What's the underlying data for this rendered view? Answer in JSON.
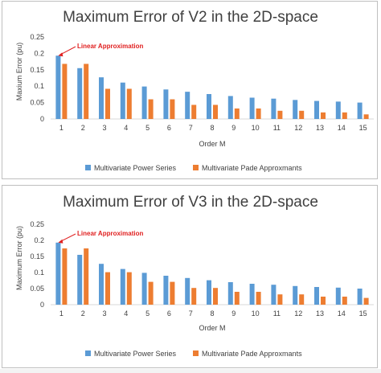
{
  "chart_data": [
    {
      "type": "bar",
      "title": "Maximum Error of V2 in the 2D-space",
      "xlabel": "Order M",
      "ylabel": "Maxium Error (pu)",
      "ylim": [
        0,
        0.25
      ],
      "yticks": [
        "0",
        "0.05",
        "0.1",
        "0.15",
        "0.2",
        "0.25"
      ],
      "categories": [
        "1",
        "2",
        "3",
        "4",
        "5",
        "6",
        "7",
        "8",
        "9",
        "10",
        "11",
        "12",
        "13",
        "14",
        "15"
      ],
      "series": [
        {
          "name": "Multivariate Power Series",
          "color": "#5b9bd5",
          "values": [
            0.193,
            0.155,
            0.127,
            0.111,
            0.099,
            0.09,
            0.083,
            0.076,
            0.07,
            0.065,
            0.062,
            0.058,
            0.055,
            0.053,
            0.05
          ]
        },
        {
          "name": "Multivariate Pade Approxmants",
          "color": "#ed7d31",
          "values": [
            0.168,
            0.168,
            0.092,
            0.092,
            0.06,
            0.06,
            0.043,
            0.043,
            0.032,
            0.032,
            0.025,
            0.025,
            0.02,
            0.02,
            0.014
          ]
        }
      ],
      "annotation": {
        "text": "Linear Approximation",
        "category": "1",
        "color": "#e02020"
      },
      "grid": false,
      "legend": "bottom"
    },
    {
      "type": "bar",
      "title": "Maximum Error of V3 in the 2D-space",
      "xlabel": "Order M",
      "ylabel": "Maximum Error (pu)",
      "ylim": [
        0,
        0.25
      ],
      "yticks": [
        "0",
        "0.05",
        "0.1",
        "0.15",
        "0.2",
        "0.25"
      ],
      "categories": [
        "1",
        "2",
        "3",
        "4",
        "5",
        "6",
        "7",
        "8",
        "9",
        "10",
        "11",
        "12",
        "13",
        "14",
        "15"
      ],
      "series": [
        {
          "name": "Multivariate Power Series",
          "color": "#5b9bd5",
          "values": [
            0.193,
            0.155,
            0.127,
            0.111,
            0.099,
            0.09,
            0.083,
            0.076,
            0.07,
            0.065,
            0.062,
            0.058,
            0.055,
            0.053,
            0.05
          ]
        },
        {
          "name": "Multivariate Pade Approxmants",
          "color": "#ed7d31",
          "values": [
            0.175,
            0.175,
            0.101,
            0.101,
            0.071,
            0.071,
            0.052,
            0.052,
            0.04,
            0.04,
            0.032,
            0.032,
            0.025,
            0.025,
            0.021
          ]
        }
      ],
      "annotation": {
        "text": "Linear Approximation",
        "category": "1",
        "color": "#e02020"
      },
      "grid": false,
      "legend": "bottom"
    }
  ]
}
